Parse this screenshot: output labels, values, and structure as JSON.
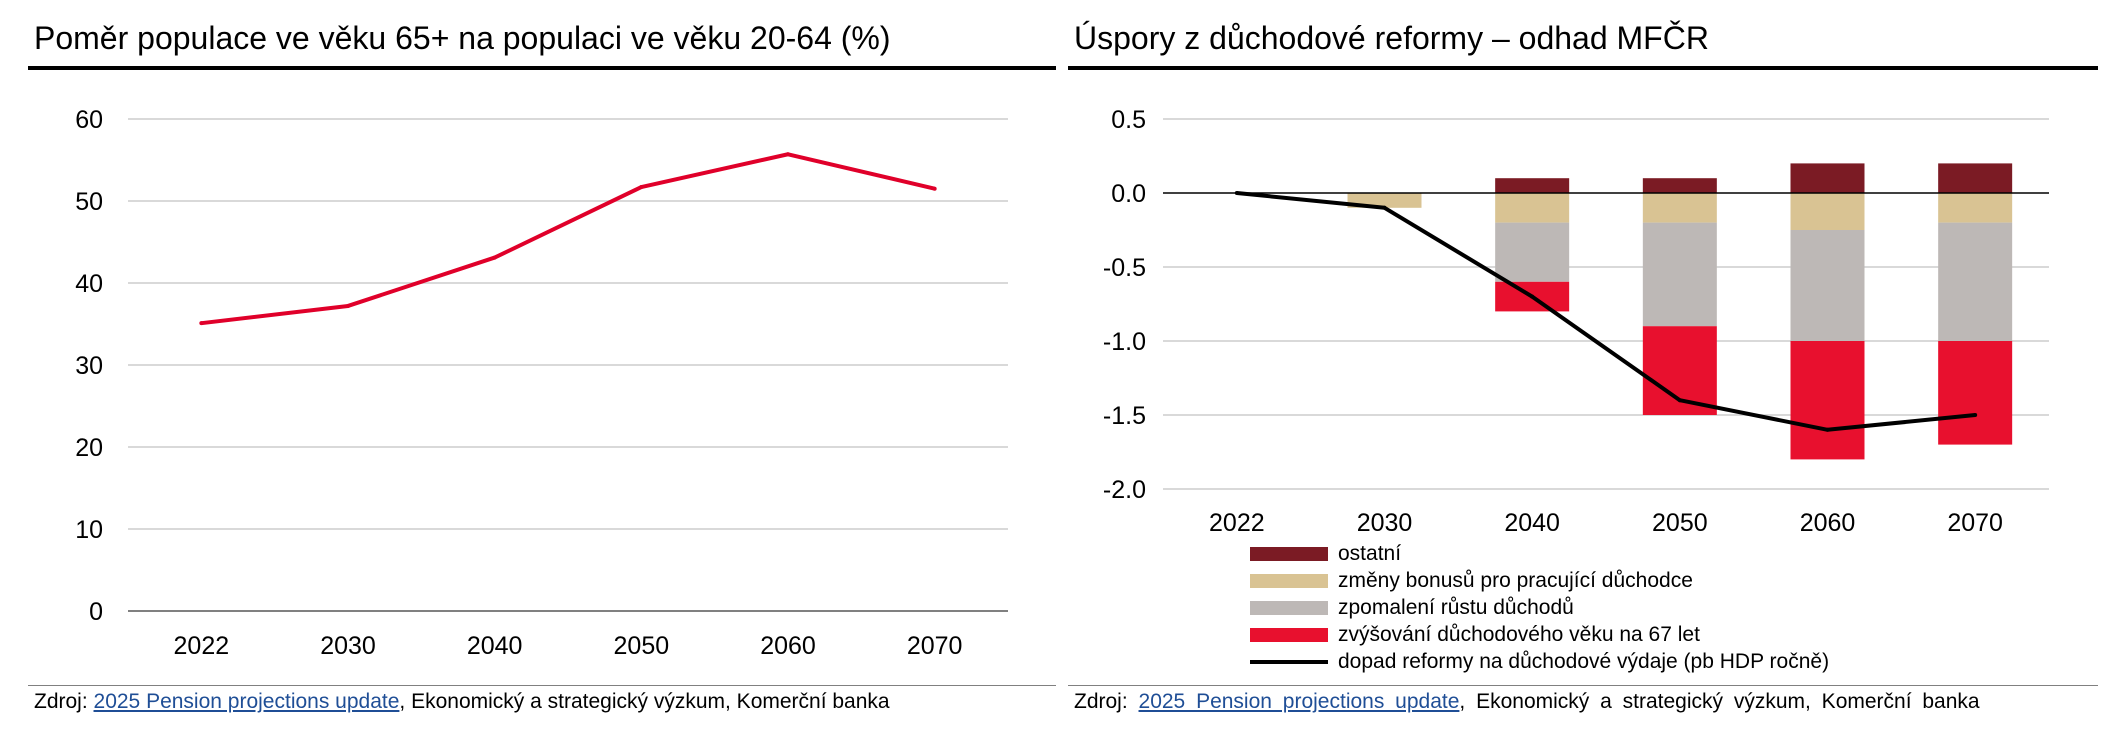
{
  "left": {
    "title": "Poměr populace ve věku 65+ na populaci ve věku 20-64 (%)",
    "source_prefix": "Zdroj: ",
    "source_link": "2025 Pension projections update",
    "source_suffix": ", Ekonomický a strategický výzkum, Komerční banka"
  },
  "right": {
    "title": "Úspory z důchodové reformy – odhad MFČR",
    "source_prefix": "Zdroj: ",
    "source_link": "2025 Pension projections update",
    "source_suffix": ", Ekonomický a strategický výzkum, Komerční banka"
  },
  "chart_data": [
    {
      "type": "line",
      "title": "Poměr populace ve věku 65+ na populaci ve věku 20-64 (%)",
      "categories": [
        "2022",
        "2030",
        "2040",
        "2050",
        "2060",
        "2070"
      ],
      "series": [
        {
          "values": [
            35.1,
            37.2,
            43.1,
            51.7,
            55.7,
            51.5
          ],
          "color": "#e0002a"
        }
      ],
      "ylim": [
        0,
        60
      ],
      "yticks": [
        0,
        10,
        20,
        30,
        40,
        50,
        60
      ],
      "grid": true
    },
    {
      "type": "bar",
      "stacked": true,
      "title": "Úspory z důchodové reformy – odhad MFČR",
      "categories": [
        "2022",
        "2030",
        "2040",
        "2050",
        "2060",
        "2070"
      ],
      "series": [
        {
          "name": "ostatní",
          "color": "#7b1b24",
          "values": [
            0,
            0,
            0.1,
            0.1,
            0.2,
            0.2
          ]
        },
        {
          "name": "změny bonusů pro pracující důchodce",
          "color": "#d9c393",
          "values": [
            0,
            -0.1,
            -0.2,
            -0.2,
            -0.25,
            -0.2
          ]
        },
        {
          "name": "zpomalení růstu důchodů",
          "color": "#bdb8b6",
          "values": [
            0,
            0,
            -0.4,
            -0.7,
            -0.75,
            -0.8
          ]
        },
        {
          "name": "zvýšování důchodového věku na 67 let",
          "color": "#e8102e",
          "values": [
            0,
            0,
            -0.2,
            -0.6,
            -0.8,
            -0.7
          ]
        }
      ],
      "line_series": {
        "name": "dopad reformy na důchodové výdaje (pb HDP ročně)",
        "color": "#000000",
        "values": [
          0.0,
          -0.1,
          -0.7,
          -1.4,
          -1.6,
          -1.5
        ]
      },
      "ylim": [
        -2.0,
        0.5
      ],
      "yticks": [
        "0.5",
        "0.0",
        "-0.5",
        "-1.0",
        "-1.5",
        "-2.0"
      ],
      "grid": true,
      "legend_position": "bottom"
    }
  ]
}
